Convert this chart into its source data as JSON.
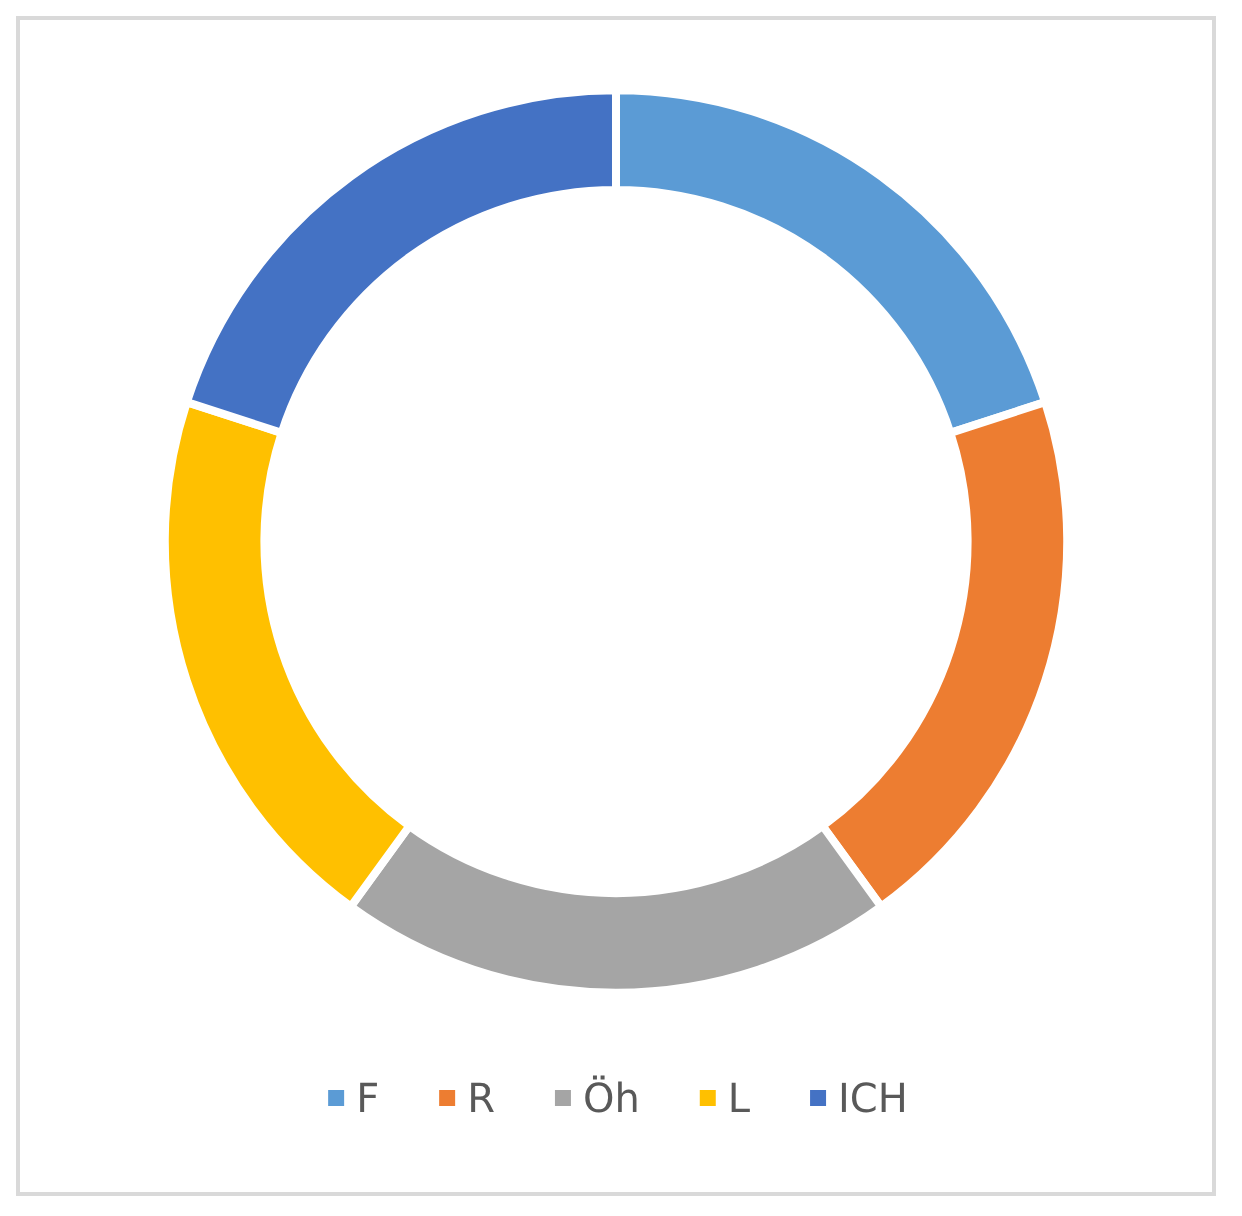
{
  "chart_data": {
    "type": "donut",
    "categories": [
      "F",
      "R",
      "Öh",
      "L",
      "ICH"
    ],
    "values": [
      20,
      20,
      20,
      20,
      20
    ],
    "colors": [
      "#5b9bd5",
      "#ed7d31",
      "#a5a5a5",
      "#ffc000",
      "#4472c4"
    ],
    "legend": "bottom"
  }
}
